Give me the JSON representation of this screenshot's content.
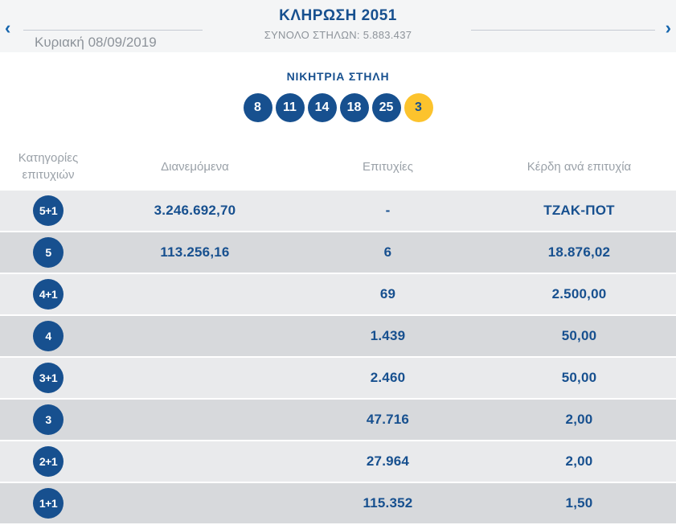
{
  "header": {
    "title": "ΚΛΗΡΩΣΗ 2051",
    "subtitle": "ΣΥΝΟΛΟ ΣΤΗΛΩΝ: 5.883.437",
    "date": "Κυριακή 08/09/2019",
    "prev_arrow": "‹",
    "next_arrow": "›"
  },
  "winning": {
    "title": "ΝΙΚΗΤΡΙΑ ΣΤΗΛΗ",
    "numbers": [
      "8",
      "11",
      "14",
      "18",
      "25",
      "3"
    ],
    "bonus_index": 5
  },
  "table": {
    "headers": {
      "category": "Κατηγορίες επιτυχιών",
      "distributed": "Διανεμόμενα",
      "winners": "Επιτυχίες",
      "prize": "Κέρδη ανά επιτυχία"
    },
    "rows": [
      {
        "category": "5+1",
        "distributed": "3.246.692,70",
        "winners": "-",
        "prize": "ΤΖΑΚ-ΠΟΤ"
      },
      {
        "category": "5",
        "distributed": "113.256,16",
        "winners": "6",
        "prize": "18.876,02"
      },
      {
        "category": "4+1",
        "distributed": "",
        "winners": "69",
        "prize": "2.500,00"
      },
      {
        "category": "4",
        "distributed": "",
        "winners": "1.439",
        "prize": "50,00"
      },
      {
        "category": "3+1",
        "distributed": "",
        "winners": "2.460",
        "prize": "50,00"
      },
      {
        "category": "3",
        "distributed": "",
        "winners": "47.716",
        "prize": "2,00"
      },
      {
        "category": "2+1",
        "distributed": "",
        "winners": "27.964",
        "prize": "2,00"
      },
      {
        "category": "1+1",
        "distributed": "",
        "winners": "115.352",
        "prize": "1,50"
      }
    ]
  },
  "colors": {
    "navy": "#17508f",
    "arrow_blue": "#1565ad",
    "bonus_yellow": "#fcc32d",
    "row_light": "#e9eaec",
    "row_dark": "#d7d9dc",
    "top_strip": "#f4f5f6",
    "gray_text": "#8d939a"
  }
}
